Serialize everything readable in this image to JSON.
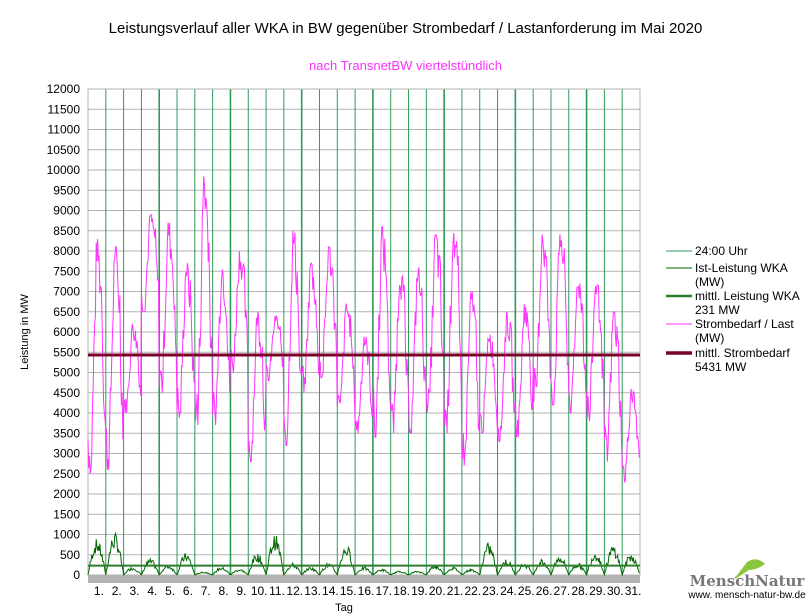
{
  "chart_data": {
    "type": "line",
    "title": "Leistungsverlauf aller WKA in BW gegenüber  Strombedarf / Lastanforderung im Mai 2020",
    "subtitle": "nach TransnetBW viertelstündlich",
    "xlabel": "Tag",
    "ylabel": "Leistung in MW",
    "ylim": [
      0,
      12000
    ],
    "yticks": [
      0,
      500,
      1000,
      1500,
      2000,
      2500,
      3000,
      3500,
      4000,
      4500,
      5000,
      5500,
      6000,
      6500,
      7000,
      7500,
      8000,
      8500,
      9000,
      9500,
      10000,
      10500,
      11000,
      11500,
      12000
    ],
    "xticks": [
      "1.",
      "2.",
      "3.",
      "4.",
      "5.",
      "6.",
      "7.",
      "8.",
      "9.",
      "10.",
      "11.",
      "12.",
      "13.",
      "14.",
      "15.",
      "16.",
      "17.",
      "18.",
      "19.",
      "20.",
      "21.",
      "22.",
      "23.",
      "24.",
      "25.",
      "26.",
      "27.",
      "28.",
      "29.",
      "30.",
      "31."
    ],
    "load_daily_min": [
      2500,
      2600,
      4000,
      6500,
      4500,
      3800,
      3700,
      3700,
      5000,
      2800,
      4800,
      3200,
      4500,
      4800,
      4000,
      3500,
      3400,
      3500,
      3500,
      4000,
      3500,
      2700,
      3500,
      3300,
      3400,
      4200,
      4200,
      4000,
      3800,
      2800,
      2300
    ],
    "load_daily_max": [
      8300,
      8100,
      6200,
      8900,
      8700,
      7700,
      9900,
      7700,
      8000,
      6500,
      6400,
      8500,
      7700,
      8100,
      6700,
      5900,
      8600,
      7600,
      7600,
      8400,
      8600,
      7000,
      6000,
      6500,
      6700,
      8500,
      8500,
      7400,
      7300,
      6500,
      4600
    ],
    "wind_daily_max": [
      900,
      1050,
      200,
      400,
      250,
      550,
      80,
      200,
      150,
      550,
      1000,
      300,
      200,
      300,
      750,
      200,
      150,
      100,
      100,
      250,
      200,
      150,
      800,
      400,
      300,
      400,
      500,
      300,
      600,
      750,
      550
    ],
    "mean_wind": 231,
    "mean_load": 5431,
    "legend": [
      {
        "label": "24:00 Uhr",
        "color": "#2e9a5a"
      },
      {
        "label": "Ist-Leistung WKA",
        "label2": "(MW)",
        "color": "#006600"
      },
      {
        "label": "mittl. Leistung WKA",
        "label2": "231 MW",
        "color": "#2d7d2d"
      },
      {
        "label": "Strombedarf / Last",
        "label2": "(MW)",
        "color": "#ff33ff"
      },
      {
        "label": "mittl. Strombedarf",
        "label2": "5431 MW",
        "color": "#7b0028"
      }
    ],
    "legend_position": "right"
  },
  "logo": {
    "brand": "MenschNatur",
    "url": "www. mensch-natur-bw.de"
  }
}
